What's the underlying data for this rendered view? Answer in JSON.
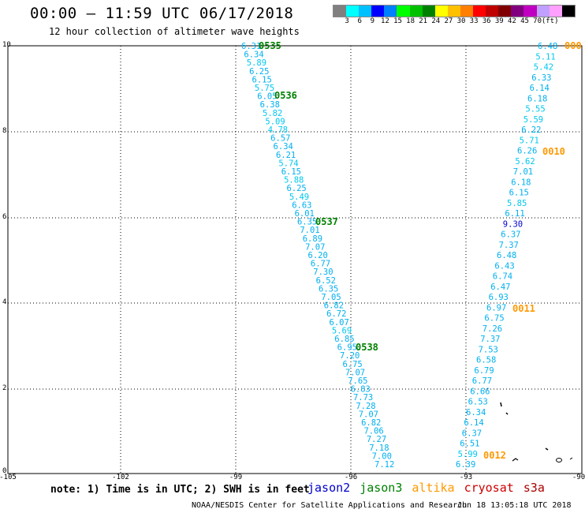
{
  "header": {
    "title": "00:00 – 11:59 UTC 06/17/2018",
    "subtitle": "12 hour collection of altimeter wave heights"
  },
  "legend": {
    "colors": [
      "#808080",
      "#00ffff",
      "#00c0ff",
      "#0000ff",
      "#0080ff",
      "#00ff00",
      "#00c000",
      "#008000",
      "#ffff00",
      "#ffc000",
      "#ff8000",
      "#ff0000",
      "#c00000",
      "#800000",
      "#800080",
      "#c000c0",
      "#c0a0ff",
      "#ffa0ff",
      "#000000"
    ],
    "tick_labels": [
      "3",
      "6",
      "9",
      "12",
      "15",
      "18",
      "21",
      "24",
      "27",
      "30",
      "33",
      "36",
      "39",
      "42",
      "45",
      "70",
      "(ft)"
    ]
  },
  "map": {
    "y_ticks": [
      "10",
      "8",
      "6",
      "4",
      "2",
      "0"
    ],
    "x_ticks": [
      "-105",
      "-102",
      "-99",
      "-96",
      "-93",
      "-90"
    ],
    "jason3_track": [
      "6.31",
      "6.34",
      "5.89",
      "6.25",
      "6.15",
      "5.75",
      "6.05",
      "6.38",
      "5.82",
      "5.09",
      "4.78",
      "6.57",
      "6.34",
      "6.21",
      "5.74",
      "6.15",
      "5.88",
      "6.25",
      "5.49",
      "6.63",
      "6.01",
      "6.35",
      "7.01",
      "6.89",
      "7.07",
      "6.20",
      "6.77",
      "7.30",
      "6.52",
      "6.35",
      "7.05",
      "6.82",
      "6.72",
      "6.07",
      "5.69",
      "6.85",
      "6.95",
      "7.20",
      "6.75",
      "7.07",
      "7.65",
      "6.83",
      "7.73",
      "7.28",
      "7.07",
      "6.82",
      "7.06",
      "7.27",
      "7.18",
      "7.00",
      "7.12"
    ],
    "altika_track": [
      "6.48",
      "5.11",
      "5.42",
      "6.33",
      "6.14",
      "6.18",
      "5.55",
      "5.59",
      "6.22",
      "5.71",
      "6.26",
      "5.62",
      "7.01",
      "6.18",
      "6.15",
      "5.85",
      "6.11",
      "9.30",
      "6.37",
      "7.37",
      "6.48",
      "6.43",
      "6.74",
      "6.47",
      "6.93",
      "6.97",
      "6.75",
      "7.26",
      "7.37",
      "7.53",
      "6.58",
      "6.79",
      "6.77",
      "6.66",
      "6.53",
      "6.34",
      "6.14",
      "6.37",
      "6.51",
      "5.99",
      "6.39"
    ],
    "jason3_pass_labels": [
      "0535",
      "0536",
      "0537",
      "0538"
    ],
    "altika_pass_labels": [
      "000",
      "0010",
      "0011",
      "0012"
    ]
  },
  "footer": {
    "note": "note:  1) Time is in UTC;  2) SWH is in feet",
    "satellites": [
      {
        "name": "jason2",
        "color": "#0000cc"
      },
      {
        "name": "jason3",
        "color": "#008000"
      },
      {
        "name": "altika",
        "color": "#ff9900"
      },
      {
        "name": "cryosat",
        "color": "#cc0000"
      },
      {
        "name": "s3a",
        "color": "#aa0000"
      }
    ],
    "source": "NOAA/NESDIS Center for Satellite Applications and Research",
    "timestamp": "Jun 18 13:05:18 UTC 2018"
  }
}
